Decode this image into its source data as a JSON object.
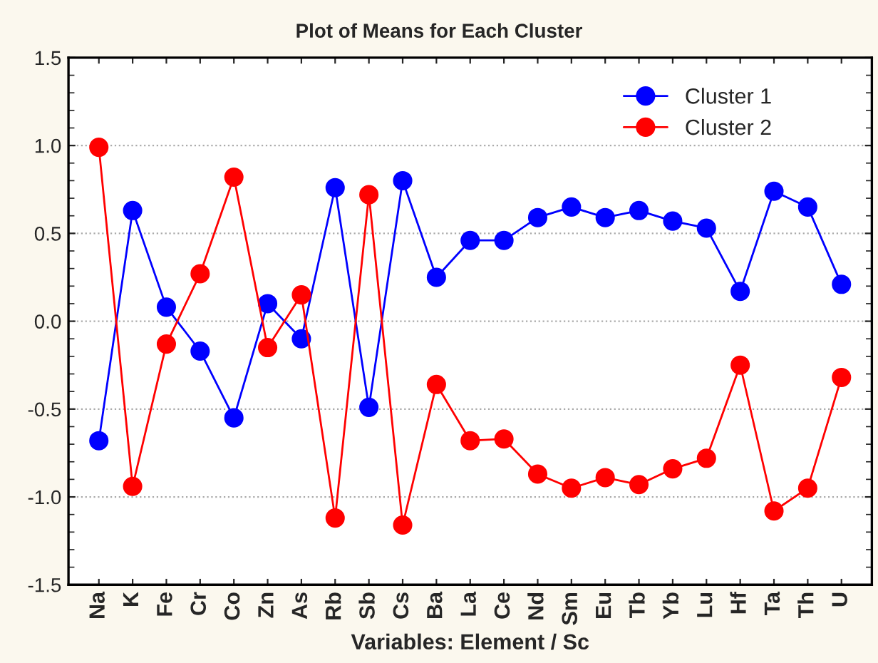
{
  "chart_data": {
    "type": "line",
    "title": "Plot of Means for Each Cluster",
    "xlabel": "Variables: Element / Sc",
    "categories": [
      "Na",
      "K",
      "Fe",
      "Cr",
      "Co",
      "Zn",
      "As",
      "Rb",
      "Sb",
      "Cs",
      "Ba",
      "La",
      "Ce",
      "Nd",
      "Sm",
      "Eu",
      "Tb",
      "Yb",
      "Lu",
      "Hf",
      "Ta",
      "Th",
      "U"
    ],
    "series": [
      {
        "name": "Cluster 1",
        "color": "#0000ff",
        "values": [
          -0.68,
          0.63,
          0.08,
          -0.17,
          -0.55,
          0.1,
          -0.1,
          0.76,
          -0.49,
          0.8,
          0.25,
          0.46,
          0.46,
          0.59,
          0.65,
          0.59,
          0.63,
          0.57,
          0.53,
          0.17,
          0.74,
          0.65,
          0.21
        ]
      },
      {
        "name": "Cluster 2",
        "color": "#ff0000",
        "values": [
          0.99,
          -0.94,
          -0.13,
          0.27,
          0.82,
          -0.15,
          0.15,
          -1.12,
          0.72,
          -1.16,
          -0.36,
          -0.68,
          -0.67,
          -0.87,
          -0.95,
          -0.89,
          -0.93,
          -0.84,
          -0.78,
          -0.25,
          -1.08,
          -0.95,
          -0.32
        ]
      }
    ],
    "ylim": [
      -1.5,
      1.5
    ],
    "yticks": [
      -1.5,
      {
        "value": -1,
        "label": "-1.0"
      },
      -0.5,
      {
        "value": 0,
        "label": "0.0"
      },
      0.5,
      {
        "value": 1,
        "label": "1.0"
      },
      1.5
    ],
    "grid": "y",
    "legend": "top right",
    "marker": "circle",
    "line_style": "solid"
  }
}
